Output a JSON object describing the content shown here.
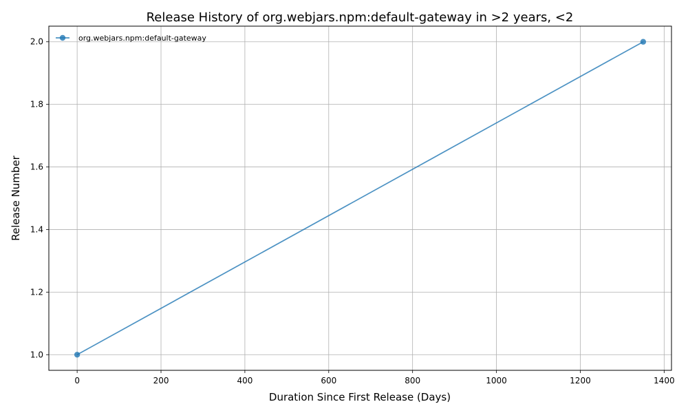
{
  "chart_data": {
    "type": "line",
    "title": "Release History of org.webjars.npm:default-gateway in >2 years, <2",
    "xlabel": "Duration Since First Release (Days)",
    "ylabel": "Release Number",
    "xlim": [
      -67.5,
      1417.5
    ],
    "ylim": [
      0.95,
      2.05
    ],
    "xticks": [
      0,
      200,
      400,
      600,
      800,
      1000,
      1200,
      1400
    ],
    "yticks": [
      1.0,
      1.2,
      1.4,
      1.6,
      1.8,
      2.0
    ],
    "xtick_labels": [
      "0",
      "200",
      "400",
      "600",
      "800",
      "1000",
      "1200",
      "1400"
    ],
    "ytick_labels": [
      "1.0",
      "1.2",
      "1.4",
      "1.6",
      "1.8",
      "2.0"
    ],
    "grid": true,
    "legend_position": "upper-left",
    "series": [
      {
        "name": "org.webjars.npm:default-gateway",
        "color": "#1f77b4",
        "marker": "circle",
        "x": [
          0,
          1350
        ],
        "y": [
          1,
          2
        ]
      }
    ]
  }
}
